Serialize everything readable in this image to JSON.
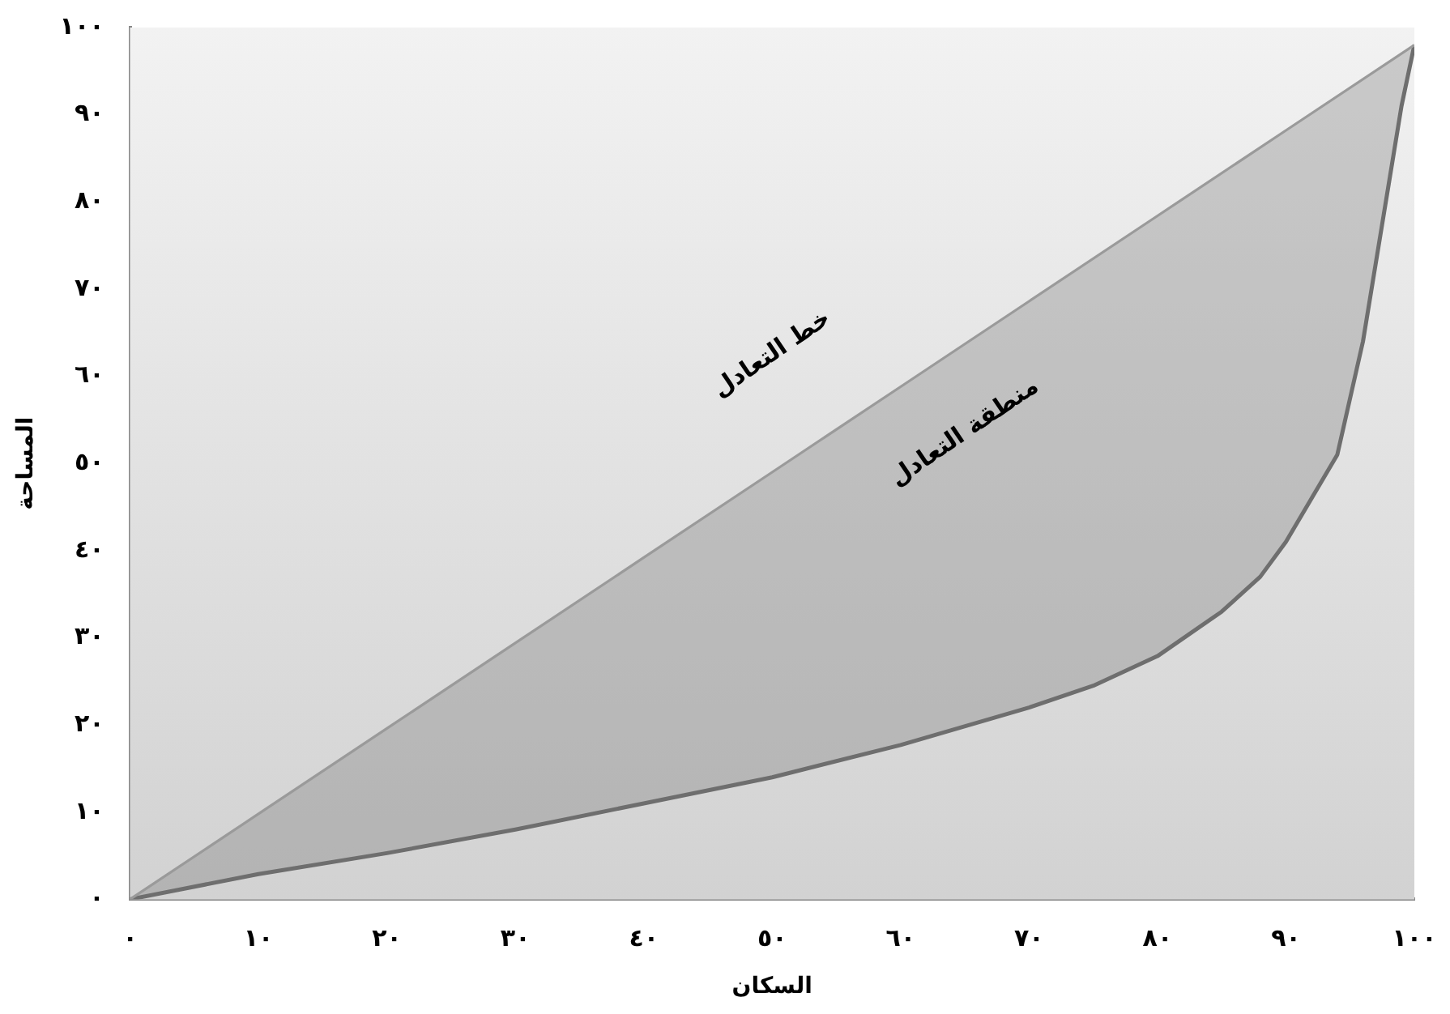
{
  "chart_data": {
    "type": "line",
    "xlabel": "السكان",
    "ylabel": "المساحة",
    "xlim": [
      0,
      100
    ],
    "ylim": [
      0,
      100
    ],
    "xticks": [
      {
        "value": 0,
        "label": "٠"
      },
      {
        "value": 10,
        "label": "١٠"
      },
      {
        "value": 20,
        "label": "٢٠"
      },
      {
        "value": 30,
        "label": "٣٠"
      },
      {
        "value": 40,
        "label": "٤٠"
      },
      {
        "value": 50,
        "label": "٥٠"
      },
      {
        "value": 60,
        "label": "٦٠"
      },
      {
        "value": 70,
        "label": "٧٠"
      },
      {
        "value": 80,
        "label": "٨٠"
      },
      {
        "value": 90,
        "label": "٩٠"
      },
      {
        "value": 100,
        "label": "١٠٠"
      }
    ],
    "yticks": [
      {
        "value": 0,
        "label": "٠"
      },
      {
        "value": 10,
        "label": "١٠"
      },
      {
        "value": 20,
        "label": "٢٠"
      },
      {
        "value": 30,
        "label": "٣٠"
      },
      {
        "value": 40,
        "label": "٤٠"
      },
      {
        "value": 50,
        "label": "٥٠"
      },
      {
        "value": 60,
        "label": "٦٠"
      },
      {
        "value": 70,
        "label": "٧٠"
      },
      {
        "value": 80,
        "label": "٨٠"
      },
      {
        "value": 90,
        "label": "٩٠"
      },
      {
        "value": 100,
        "label": "١٠٠"
      }
    ],
    "series": [
      {
        "type": "line",
        "color": "#9a9a9a",
        "x": [
          0,
          10,
          20,
          30,
          40,
          50,
          60,
          70,
          80,
          90,
          100
        ],
        "values": [
          0,
          9.8,
          19.6,
          29.4,
          39.2,
          49,
          58.8,
          68.6,
          78.4,
          88.2,
          98
        ]
      },
      {
        "type": "line",
        "color": "#6e6e6e",
        "x": [
          0,
          10,
          20,
          30,
          40,
          50,
          60,
          70,
          75,
          80,
          85,
          88,
          90,
          92,
          94,
          96,
          97,
          98,
          99,
          100
        ],
        "values": [
          0,
          2.9,
          5.3,
          8,
          11,
          14,
          17.7,
          22,
          24.5,
          27.9,
          33,
          37,
          41,
          46,
          51,
          64,
          73,
          82,
          91,
          98
        ],
        "lower": [
          0,
          2.9,
          5.3,
          8,
          11,
          14,
          17.7,
          22,
          24.5,
          27.9,
          33,
          37,
          41,
          46,
          51,
          64,
          73,
          82,
          91,
          98
        ],
        "upper": [
          0,
          9.8,
          19.6,
          29.4,
          39.2,
          49,
          58.8,
          68.6,
          73.5,
          78.4,
          83.3,
          86.24,
          88.2,
          90.16,
          92.12,
          94.08,
          95.06,
          96.04,
          97.02,
          98
        ]
      }
    ],
    "annotations": [
      "خط التعادل",
      "منطقة التعادل"
    ],
    "grid": false,
    "legend": false,
    "marker": "none",
    "line_style": "solid"
  }
}
